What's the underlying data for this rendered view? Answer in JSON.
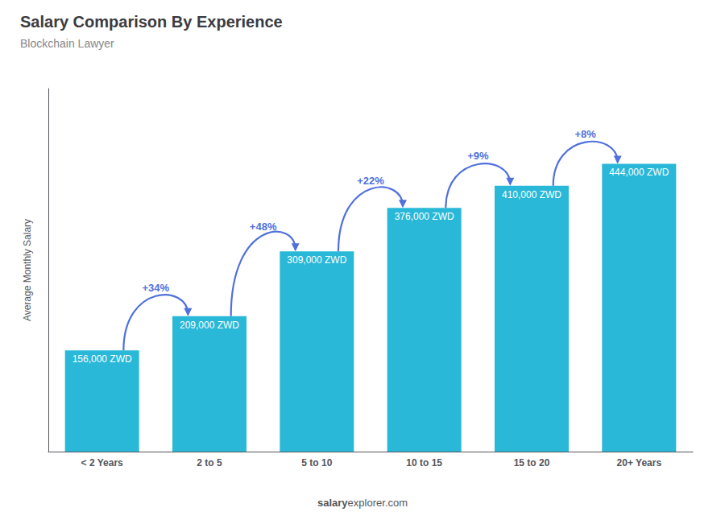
{
  "chart_data": {
    "type": "bar",
    "title": "Salary Comparison By Experience",
    "subtitle": "Blockchain Lawyer",
    "ylabel": "Average Monthly Salary",
    "categories": [
      "< 2 Years",
      "2 to 5",
      "5 to 10",
      "10 to 15",
      "15 to 20",
      "20+ Years"
    ],
    "values": [
      156000,
      209000,
      309000,
      376000,
      410000,
      444000
    ],
    "value_labels": [
      "156,000 ZWD",
      "209,000 ZWD",
      "309,000 ZWD",
      "376,000 ZWD",
      "410,000 ZWD",
      "444,000 ZWD"
    ],
    "data_labels": true,
    "annotations": [
      "+34%",
      "+48%",
      "+22%",
      "+9%",
      "+8%"
    ],
    "footer": [
      "salary",
      "explorer.com"
    ],
    "color": "#29b8d8",
    "ylim": [
      0,
      560000
    ],
    "tick_labels": "x",
    "grid": false
  }
}
